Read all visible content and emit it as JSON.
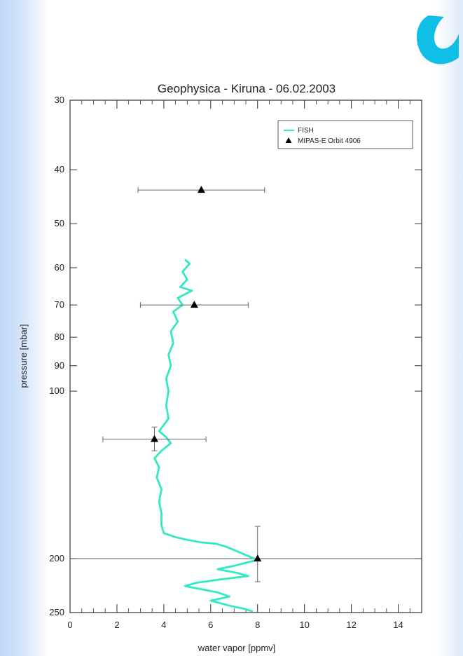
{
  "chart_data": {
    "type": "line",
    "title": "Geophysica - Kiruna - 06.02.2003",
    "xlabel": "water vapor [ppmv]",
    "ylabel": "pressure [mbar]",
    "xlim": [
      0,
      15
    ],
    "ylim": [
      30,
      250
    ],
    "y_scale": "log",
    "y_inverted": true,
    "x_ticks": [
      0,
      2,
      4,
      6,
      8,
      10,
      12,
      14
    ],
    "y_ticks": [
      30,
      40,
      50,
      60,
      70,
      80,
      90,
      100,
      200,
      250
    ],
    "grid": false,
    "legend_position": "top-right",
    "reference_line": {
      "y": 200
    },
    "series": [
      {
        "name": "FISH",
        "kind": "line",
        "color": "#34e8c4",
        "points": [
          [
            4.9,
            58
          ],
          [
            5.1,
            59
          ],
          [
            4.8,
            61
          ],
          [
            5.0,
            63
          ],
          [
            4.7,
            65
          ],
          [
            5.2,
            66
          ],
          [
            4.6,
            68
          ],
          [
            4.8,
            70
          ],
          [
            4.4,
            72
          ],
          [
            4.6,
            75
          ],
          [
            4.3,
            78
          ],
          [
            4.4,
            82
          ],
          [
            4.2,
            86
          ],
          [
            4.3,
            90
          ],
          [
            4.1,
            95
          ],
          [
            4.2,
            100
          ],
          [
            4.1,
            106
          ],
          [
            4.2,
            112
          ],
          [
            3.8,
            118
          ],
          [
            4.1,
            121
          ],
          [
            4.3,
            124
          ],
          [
            3.9,
            128
          ],
          [
            3.6,
            132
          ],
          [
            3.8,
            137
          ],
          [
            3.7,
            143
          ],
          [
            3.9,
            150
          ],
          [
            3.8,
            158
          ],
          [
            3.9,
            166
          ],
          [
            3.9,
            174
          ],
          [
            4.0,
            180
          ],
          [
            4.5,
            183
          ],
          [
            5.0,
            185
          ],
          [
            5.6,
            187
          ],
          [
            6.2,
            188
          ],
          [
            6.6,
            190
          ],
          [
            7.0,
            193
          ],
          [
            7.5,
            197
          ],
          [
            8.0,
            201
          ],
          [
            7.4,
            204
          ],
          [
            7.0,
            206
          ],
          [
            6.3,
            209
          ],
          [
            7.1,
            212
          ],
          [
            7.6,
            215
          ],
          [
            6.4,
            218
          ],
          [
            5.4,
            221
          ],
          [
            4.9,
            224
          ],
          [
            5.6,
            227
          ],
          [
            6.3,
            230
          ],
          [
            6.8,
            234
          ],
          [
            6.0,
            238
          ],
          [
            6.8,
            243
          ],
          [
            7.4,
            246
          ],
          [
            7.8,
            249
          ]
        ]
      },
      {
        "name": "MIPAS-E Orbit 4906",
        "kind": "points",
        "marker": "triangle",
        "color": "#000000",
        "points": [
          {
            "x": 5.6,
            "y": 43.5,
            "xerr": 2.7
          },
          {
            "x": 5.3,
            "y": 70,
            "xerr": 2.3
          },
          {
            "x": 3.6,
            "y": 122,
            "xerr": 2.2,
            "ylow": 116,
            "yhigh": 128
          },
          {
            "x": 8.0,
            "y": 200,
            "ylow": 175,
            "yhigh": 220
          }
        ]
      }
    ]
  },
  "logo": {
    "name": "institute-logo",
    "color": "#10bfe6"
  }
}
